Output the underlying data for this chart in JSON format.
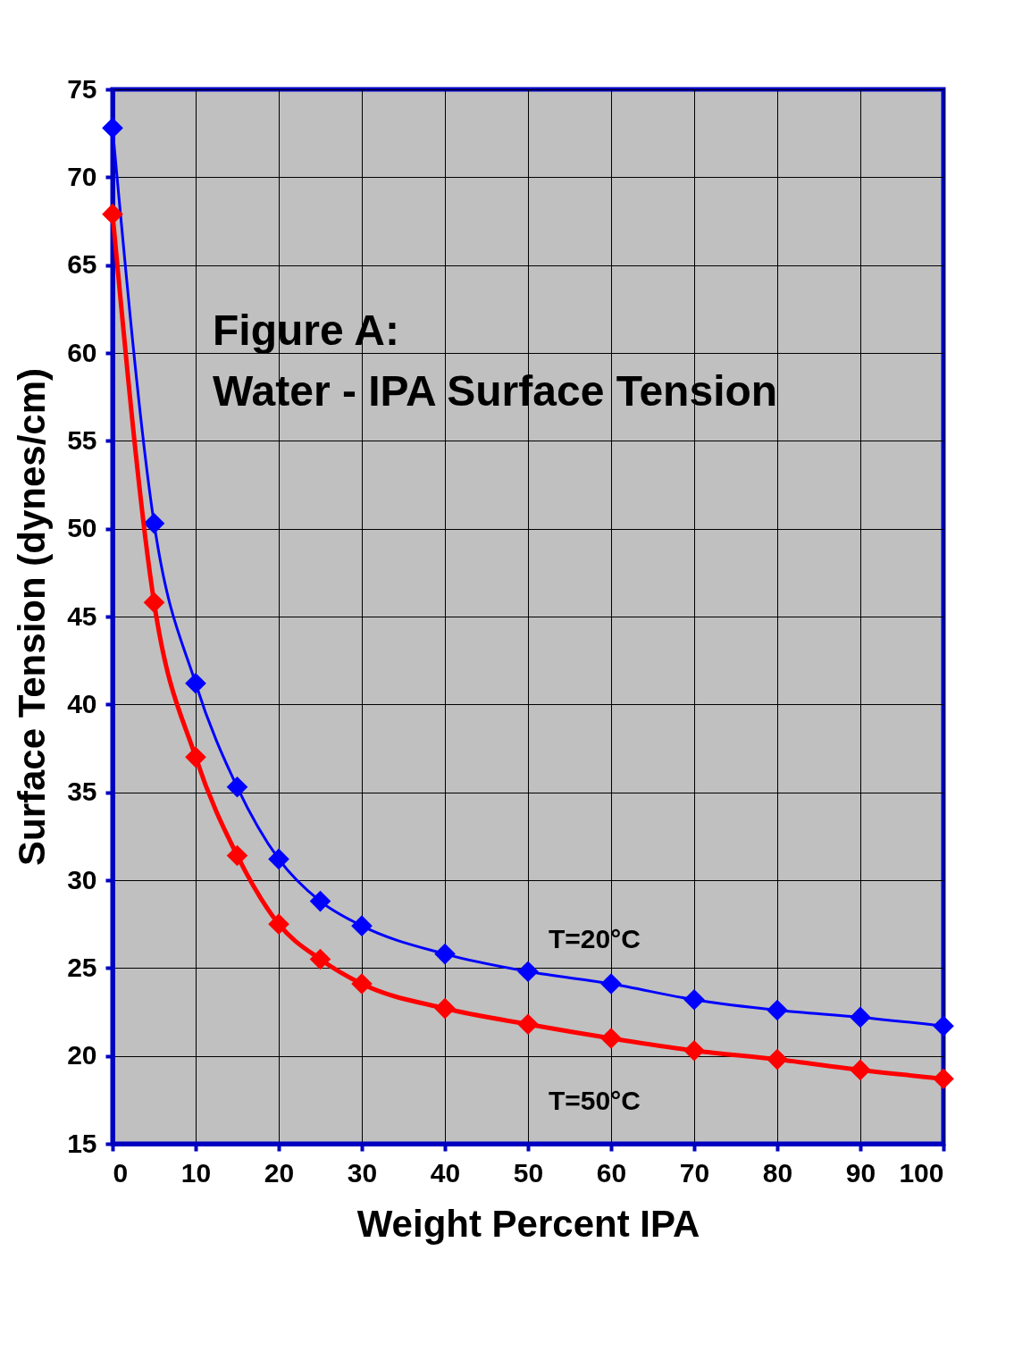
{
  "chart_data": {
    "type": "line",
    "title": "Figure A:\nWater - IPA Surface Tension",
    "xlabel": "Weight Percent IPA",
    "ylabel": "Surface Tension (dynes/cm)",
    "x": [
      0,
      5,
      10,
      15,
      20,
      25,
      30,
      40,
      50,
      60,
      70,
      80,
      90,
      100
    ],
    "series": [
      {
        "color": "#0000ff",
        "values": [
          72.8,
          50.3,
          41.2,
          35.3,
          31.2,
          28.8,
          27.4,
          25.8,
          24.8,
          24.1,
          23.2,
          22.6,
          22.2,
          21.7
        ]
      },
      {
        "color": "#ff0000",
        "values": [
          67.9,
          45.8,
          37.0,
          31.4,
          27.5,
          25.5,
          24.1,
          22.7,
          21.8,
          21.0,
          20.3,
          19.8,
          19.2,
          18.7
        ]
      }
    ],
    "annotations": [
      "T=20°C",
      "T=50°C"
    ],
    "xlim": [
      0,
      100
    ],
    "xticks": [
      0,
      10,
      20,
      30,
      40,
      50,
      60,
      70,
      80,
      90,
      100
    ],
    "ylim": [
      15,
      75
    ],
    "yticks": [
      15,
      20,
      25,
      30,
      35,
      40,
      45,
      50,
      55,
      60,
      65,
      70,
      75
    ],
    "grid": true,
    "marker": "diamond"
  }
}
